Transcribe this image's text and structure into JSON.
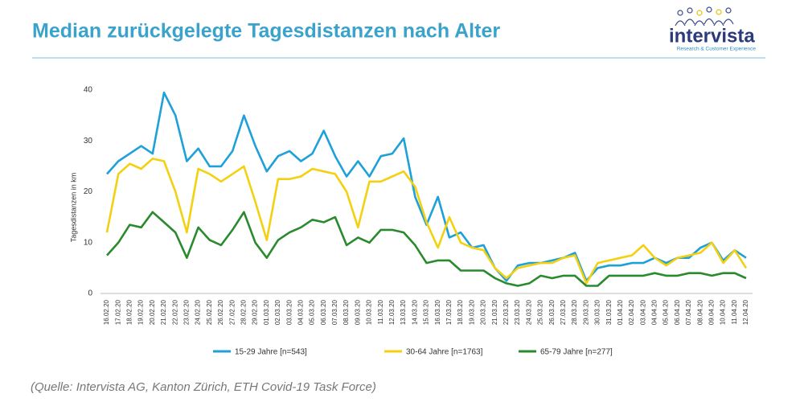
{
  "header": {
    "title": "Median zurückgelegte Tagesdistanzen nach Alter",
    "logo": "intervista",
    "logo_tagline": "Research & Customer Experience"
  },
  "chart_data": {
    "type": "line",
    "y_label": "Tagesdistanzen in km",
    "categories": [
      "16.02.20",
      "17.02.20",
      "18.02.20",
      "19.02.20",
      "20.02.20",
      "21.02.20",
      "22.02.20",
      "23.02.20",
      "24.02.20",
      "25.02.20",
      "26.02.20",
      "27.02.20",
      "28.02.20",
      "29.02.20",
      "01.03.20",
      "02.03.20",
      "03.03.20",
      "04.03.20",
      "05.03.20",
      "06.03.20",
      "07.03.20",
      "08.03.20",
      "09.03.20",
      "10.03.20",
      "11.03.20",
      "12.03.20",
      "13.03.20",
      "14.03.20",
      "15.03.20",
      "16.03.20",
      "17.03.20",
      "18.03.20",
      "19.03.20",
      "20.03.20",
      "21.03.20",
      "22.03.20",
      "23.03.20",
      "24.03.20",
      "25.03.20",
      "26.03.20",
      "27.03.20",
      "28.03.20",
      "29.03.20",
      "30.03.20",
      "31.03.20",
      "01.04.20",
      "02.04.20",
      "03.04.20",
      "04.04.20",
      "05.04.20",
      "06.04.20",
      "07.04.20",
      "08.04.20",
      "09.04.20",
      "10.04.20",
      "11.04.20",
      "12.04.20"
    ],
    "series": [
      {
        "name": "15-29 Jahre [n=543]",
        "color": "#1ea0d8",
        "values": [
          23.5,
          26,
          27.5,
          29,
          27.5,
          39.5,
          35,
          26,
          28.5,
          25,
          25,
          28,
          35,
          29,
          24,
          27,
          28,
          26,
          27.5,
          32,
          27,
          23,
          26,
          23,
          27,
          27.5,
          30.5,
          19,
          13.5,
          19,
          11,
          12,
          9,
          9.5,
          5,
          2.5,
          5.5,
          6,
          6,
          6.5,
          7,
          8,
          2.5,
          5,
          5.5,
          5.5,
          6,
          6,
          7,
          6,
          7,
          7,
          9,
          10,
          6.5,
          8.5,
          7
        ]
      },
      {
        "name": "30-64 Jahre [n=1763]",
        "color": "#f3d111",
        "values": [
          12,
          23.5,
          25.5,
          24.5,
          26.5,
          26,
          20,
          12,
          24.5,
          23.5,
          22,
          23.5,
          25,
          18,
          10.5,
          22.5,
          22.5,
          23,
          24.5,
          24,
          23.5,
          20,
          13,
          22,
          22,
          23,
          24,
          21,
          14,
          9,
          15,
          10,
          9,
          8.5,
          5,
          3,
          5,
          5.5,
          6,
          6,
          7,
          7.5,
          2,
          6,
          6.5,
          7,
          7.5,
          9.5,
          7,
          5.5,
          7,
          7.5,
          8,
          10,
          6,
          8.5,
          5
        ]
      },
      {
        "name": "65-79 Jahre [n=277]",
        "color": "#2a8a2e",
        "values": [
          7.5,
          10,
          13.5,
          13,
          16,
          14,
          12,
          7,
          13,
          10.5,
          9.5,
          12.5,
          16,
          10,
          7,
          10.5,
          12,
          13,
          14.5,
          14,
          15,
          9.5,
          11,
          10,
          12.5,
          12.5,
          12,
          9.5,
          6,
          6.5,
          6.5,
          4.5,
          4.5,
          4.5,
          3,
          2,
          1.5,
          2,
          3.5,
          3,
          3.5,
          3.5,
          1.5,
          1.5,
          3.5,
          3.5,
          3.5,
          3.5,
          4,
          3.5,
          3.5,
          4,
          4,
          3.5,
          4,
          4,
          3
        ]
      }
    ],
    "ylim": [
      0,
      40
    ],
    "yticks": [
      0,
      10,
      20,
      30,
      40
    ],
    "grid": false
  },
  "footer": {
    "source": "(Quelle: Intervista AG, Kanton Zürich, ETH Covid-19 Task Force)"
  }
}
